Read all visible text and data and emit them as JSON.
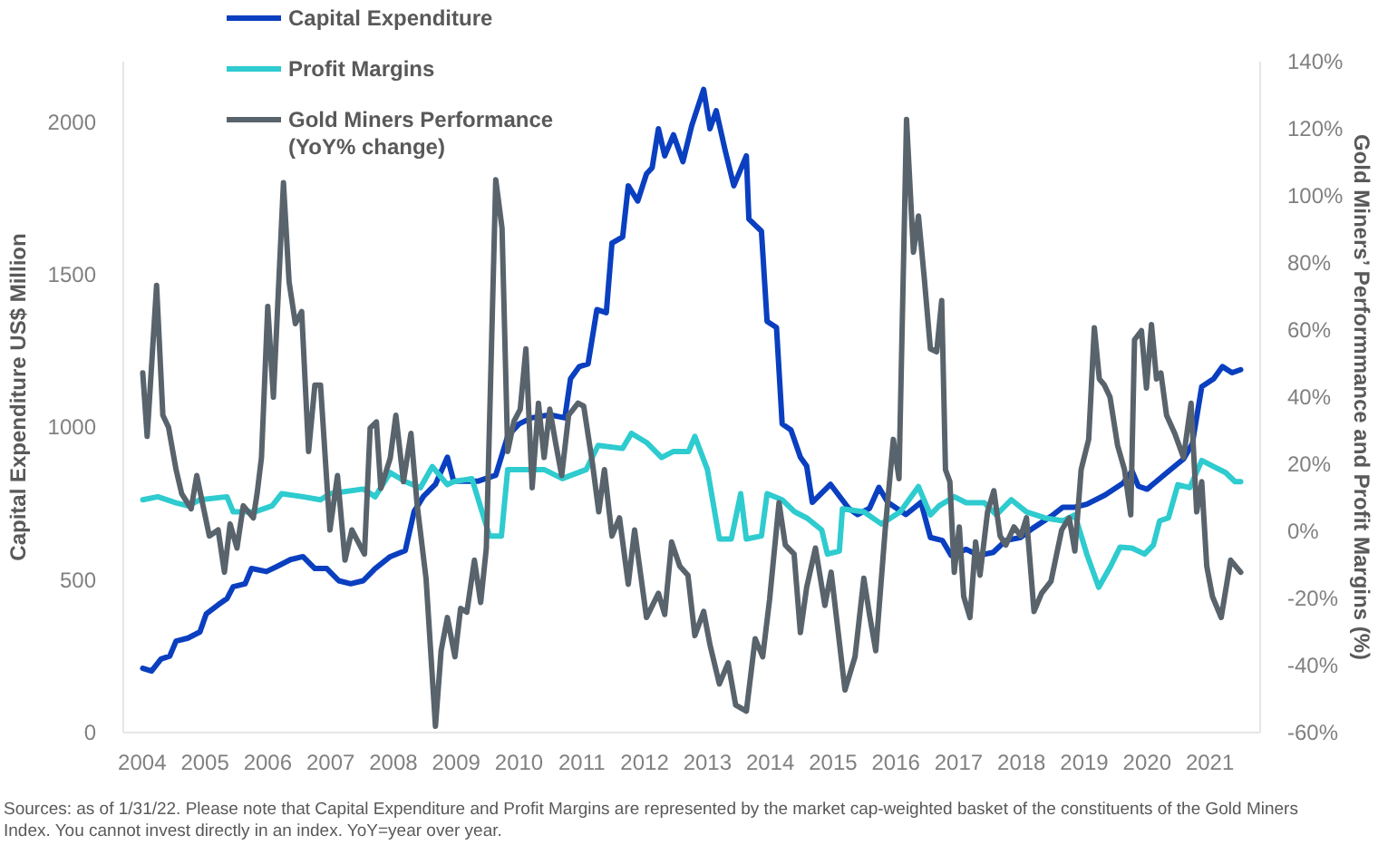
{
  "chart_data": {
    "type": "line",
    "xlabel": null,
    "ylabel": "Capital Expenditure US$ Million",
    "y2label": "Gold Miners’ Performmance and Profit Margins (%)",
    "xlim": [
      2003.7,
      2021.8
    ],
    "xticks": [
      2004,
      2005,
      2006,
      2007,
      2008,
      2009,
      2010,
      2011,
      2012,
      2013,
      2014,
      2015,
      2016,
      2017,
      2018,
      2019,
      2020,
      2021
    ],
    "ylim": [
      0,
      2200
    ],
    "yticks": [
      0,
      500,
      1000,
      1500,
      2000
    ],
    "y2lim": [
      -60,
      140
    ],
    "y2ticks": [
      {
        "value": -60,
        "label": "-60%"
      },
      {
        "value": -40,
        "label": "-40%"
      },
      {
        "value": -20,
        "label": "-20%"
      },
      {
        "value": 0,
        "label": "0%"
      },
      {
        "value": 20,
        "label": "20%"
      },
      {
        "value": 40,
        "label": "40%"
      },
      {
        "value": 60,
        "label": "60%"
      },
      {
        "value": 80,
        "label": "80%"
      },
      {
        "value": 100,
        "label": "100%"
      },
      {
        "value": 120,
        "label": "120%"
      },
      {
        "value": 140,
        "label": "140%"
      }
    ],
    "grid": false,
    "legend": "top left",
    "marker": "none",
    "line_style": "solid",
    "series": [
      {
        "name": "Capital Expenditure",
        "color": "#0a3fc0",
        "x": [
          2004.01,
          2004.15,
          2004.3,
          2004.44,
          2004.54,
          2004.73,
          2004.92,
          2005.02,
          2005.21,
          2005.35,
          2005.45,
          2005.64,
          2005.74,
          2005.98,
          2006.17,
          2006.36,
          2006.56,
          2006.75,
          2006.94,
          2007.13,
          2007.32,
          2007.52,
          2007.71,
          2007.95,
          2008.19,
          2008.33,
          2008.48,
          2008.67,
          2008.86,
          2008.96,
          2009.34,
          2009.63,
          2009.82,
          2010.0,
          2010.2,
          2010.49,
          2010.73,
          2010.82,
          2010.96,
          2011.1,
          2011.24,
          2011.39,
          2011.48,
          2011.65,
          2011.74,
          2011.89,
          2012.03,
          2012.12,
          2012.22,
          2012.32,
          2012.46,
          2012.61,
          2012.75,
          2012.94,
          2013.04,
          2013.14,
          2013.28,
          2013.42,
          2013.62,
          2013.66,
          2013.86,
          2013.95,
          2014.1,
          2014.19,
          2014.33,
          2014.48,
          2014.58,
          2014.67,
          2014.96,
          2015.25,
          2015.39,
          2015.58,
          2015.73,
          2015.87,
          2016.16,
          2016.4,
          2016.55,
          2016.74,
          2016.88,
          2017.12,
          2017.32,
          2017.55,
          2017.75,
          2017.99,
          2018.18,
          2018.47,
          2018.66,
          2018.85,
          2019.04,
          2019.33,
          2019.62,
          2019.76,
          2019.86,
          2020.0,
          2020.29,
          2020.58,
          2020.72,
          2020.87,
          2021.06,
          2021.2,
          2021.35,
          2021.49
        ],
        "values": [
          211,
          202,
          241,
          251,
          300,
          310,
          330,
          389,
          419,
          439,
          478,
          488,
          538,
          528,
          547,
          567,
          577,
          538,
          538,
          498,
          488,
          498,
          538,
          577,
          597,
          725,
          775,
          814,
          903,
          824,
          824,
          844,
          972,
          1012,
          1032,
          1042,
          1032,
          1160,
          1200,
          1209,
          1387,
          1377,
          1605,
          1625,
          1793,
          1743,
          1832,
          1852,
          1980,
          1891,
          1960,
          1872,
          1990,
          2109,
          1980,
          2039,
          1911,
          1793,
          1891,
          1684,
          1644,
          1348,
          1328,
          1012,
          992,
          903,
          874,
          755,
          814,
          735,
          715,
          735,
          804,
          755,
          715,
          755,
          640,
          630,
          581,
          601,
          581,
          591,
          630,
          640,
          670,
          709,
          739,
          739,
          749,
          779,
          818,
          858,
          808,
          798,
          848,
          897,
          947,
          1134,
          1160,
          1200,
          1180,
          1190
        ]
      },
      {
        "name": "Profit Margins",
        "color": "#2ecbcf",
        "axis": "y2",
        "x": [
          2004.01,
          2004.25,
          2004.54,
          2004.73,
          2004.92,
          2005.35,
          2005.45,
          2005.79,
          2006.07,
          2006.22,
          2006.56,
          2006.84,
          2006.99,
          2007.52,
          2007.71,
          2007.95,
          2008.19,
          2008.43,
          2008.62,
          2008.86,
          2008.96,
          2009.25,
          2009.53,
          2009.72,
          2009.82,
          2010.4,
          2010.69,
          2011.07,
          2011.26,
          2011.65,
          2011.79,
          2012.03,
          2012.27,
          2012.46,
          2012.7,
          2012.8,
          2013.0,
          2013.19,
          2013.38,
          2013.53,
          2013.62,
          2013.86,
          2013.95,
          2014.19,
          2014.39,
          2014.58,
          2014.82,
          2014.91,
          2015.1,
          2015.15,
          2015.49,
          2015.77,
          2016.07,
          2016.36,
          2016.55,
          2016.69,
          2016.93,
          2017.12,
          2017.41,
          2017.6,
          2017.84,
          2018.08,
          2018.37,
          2018.66,
          2018.85,
          2019.04,
          2019.23,
          2019.42,
          2019.57,
          2019.76,
          2019.96,
          2020.1,
          2020.2,
          2020.34,
          2020.49,
          2020.68,
          2020.87,
          2021.06,
          2021.25,
          2021.4,
          2021.49
        ],
        "values": [
          9.4,
          10.3,
          8.5,
          7.6,
          9.4,
          10.3,
          5.8,
          5.8,
          7.6,
          11.2,
          10.3,
          9.4,
          11.2,
          12.6,
          10.3,
          17.5,
          14.8,
          13.0,
          19.3,
          13.9,
          14.8,
          15.7,
          -1.4,
          -1.4,
          18.4,
          18.4,
          15.7,
          18.4,
          25.6,
          24.7,
          29.2,
          26.5,
          22.0,
          23.8,
          23.8,
          28.3,
          18.4,
          -2.3,
          -2.3,
          11.2,
          -2.3,
          -1.4,
          11.2,
          9.4,
          5.8,
          4.0,
          0.4,
          -6.8,
          -5.9,
          6.7,
          5.8,
          2.2,
          5.8,
          13.3,
          4.9,
          7.6,
          10.3,
          8.5,
          8.5,
          4.9,
          9.4,
          5.8,
          4.0,
          3.1,
          4.9,
          -6.8,
          -16.7,
          -10.4,
          -4.7,
          -5.0,
          -6.8,
          -4.1,
          3.1,
          4.0,
          13.9,
          13.0,
          21.1,
          19.3,
          17.5,
          14.8,
          14.8
        ]
      },
      {
        "name": "Gold Miners Performance (YoY% change)",
        "color": "#59636c",
        "axis": "y2",
        "x": [
          2004.01,
          2004.08,
          2004.23,
          2004.33,
          2004.42,
          2004.54,
          2004.63,
          2004.78,
          2004.87,
          2005.07,
          2005.21,
          2005.31,
          2005.4,
          2005.51,
          2005.61,
          2005.77,
          2005.83,
          2005.9,
          2006.0,
          2006.09,
          2006.25,
          2006.34,
          2006.44,
          2006.54,
          2006.65,
          2006.75,
          2006.84,
          2006.99,
          2007.11,
          2007.23,
          2007.34,
          2007.44,
          2007.54,
          2007.63,
          2007.73,
          2007.8,
          2007.95,
          2008.04,
          2008.16,
          2008.28,
          2008.38,
          2008.52,
          2008.67,
          2008.76,
          2008.86,
          2008.98,
          2009.07,
          2009.17,
          2009.29,
          2009.39,
          2009.48,
          2009.63,
          2009.73,
          2009.82,
          2009.92,
          2010.02,
          2010.11,
          2010.21,
          2010.31,
          2010.4,
          2010.49,
          2010.59,
          2010.68,
          2010.79,
          2010.94,
          2011.03,
          2011.17,
          2011.27,
          2011.36,
          2011.48,
          2011.6,
          2011.74,
          2011.84,
          2012.03,
          2012.22,
          2012.32,
          2012.43,
          2012.56,
          2012.69,
          2012.8,
          2012.94,
          2013.04,
          2013.19,
          2013.33,
          2013.45,
          2013.62,
          2013.76,
          2013.88,
          2013.99,
          2014.14,
          2014.24,
          2014.38,
          2014.48,
          2014.58,
          2014.72,
          2014.87,
          2014.97,
          2015.19,
          2015.35,
          2015.49,
          2015.58,
          2015.68,
          2015.83,
          2015.96,
          2016.05,
          2016.17,
          2016.28,
          2016.36,
          2016.45,
          2016.55,
          2016.65,
          2016.73,
          2016.79,
          2016.86,
          2016.93,
          2017.01,
          2017.08,
          2017.18,
          2017.27,
          2017.34,
          2017.46,
          2017.56,
          2017.66,
          2017.75,
          2017.88,
          2017.99,
          2018.08,
          2018.2,
          2018.32,
          2018.47,
          2018.64,
          2018.76,
          2018.85,
          2018.95,
          2019.07,
          2019.16,
          2019.24,
          2019.32,
          2019.41,
          2019.53,
          2019.64,
          2019.74,
          2019.8,
          2019.91,
          2019.99,
          2020.07,
          2020.15,
          2020.22,
          2020.31,
          2020.44,
          2020.58,
          2020.7,
          2020.79,
          2020.87,
          2020.95,
          2021.04,
          2021.18,
          2021.33,
          2021.49
        ],
        "values": [
          47.2,
          28.3,
          73.3,
          34.6,
          31.0,
          18.4,
          11.2,
          6.7,
          16.6,
          -1.4,
          0.4,
          -12.2,
          2.2,
          -5.0,
          7.6,
          4.0,
          11.2,
          22.0,
          67.0,
          40.0,
          103.9,
          74.3,
          61.9,
          65.5,
          23.8,
          43.6,
          43.6,
          0.4,
          16.6,
          -8.6,
          0.4,
          -3.2,
          -6.8,
          30.8,
          32.6,
          12.8,
          21.8,
          34.6,
          14.8,
          29.2,
          7.6,
          -14.0,
          -58.1,
          -35.6,
          -25.7,
          -37.4,
          -23.0,
          -24.1,
          -8.6,
          -21.2,
          -5.0,
          104.8,
          90.4,
          23.8,
          32.8,
          36.4,
          54.4,
          13.0,
          38.2,
          22.0,
          36.4,
          25.6,
          16.6,
          34.6,
          38.2,
          37.3,
          20.2,
          5.8,
          18.4,
          -1.4,
          4.0,
          -15.8,
          0.4,
          -25.7,
          -18.5,
          -24.8,
          -3.2,
          -10.4,
          -13.1,
          -31.1,
          -23.9,
          -33.8,
          -45.5,
          -39.2,
          -51.8,
          -53.6,
          -32.0,
          -37.4,
          -20.3,
          8.5,
          -4.1,
          -6.8,
          -30.2,
          -16.7,
          -5.0,
          -22.1,
          -12.2,
          -47.3,
          -37.4,
          -14.0,
          -24.8,
          -35.6,
          0.4,
          27.4,
          15.7,
          122.8,
          83.2,
          94.0,
          76.0,
          54.4,
          53.5,
          68.8,
          18.4,
          14.8,
          -12.2,
          1.3,
          -19.4,
          -25.7,
          -3.2,
          -13.1,
          5.8,
          12.1,
          -1.4,
          -4.1,
          1.3,
          -1.4,
          4.0,
          -23.9,
          -18.5,
          -14.9,
          0.4,
          4.0,
          -5.9,
          18.4,
          27.4,
          60.7,
          45.4,
          43.6,
          40.0,
          25.6,
          18.4,
          4.9,
          57.1,
          59.8,
          42.7,
          61.6,
          45.4,
          47.2,
          34.6,
          29.2,
          22.0,
          38.2,
          5.8,
          14.8,
          -10.4,
          -19.4,
          -25.7,
          -8.6,
          -12.2
        ]
      }
    ],
    "annotations": [
      "Sources: as of 1/31/22. Please note that Capital Expenditure and Profit Margins are represented by the market cap-weighted basket of the constituents of the Gold Miners Index. You cannot invest directly in an index. YoY=year over year."
    ]
  }
}
